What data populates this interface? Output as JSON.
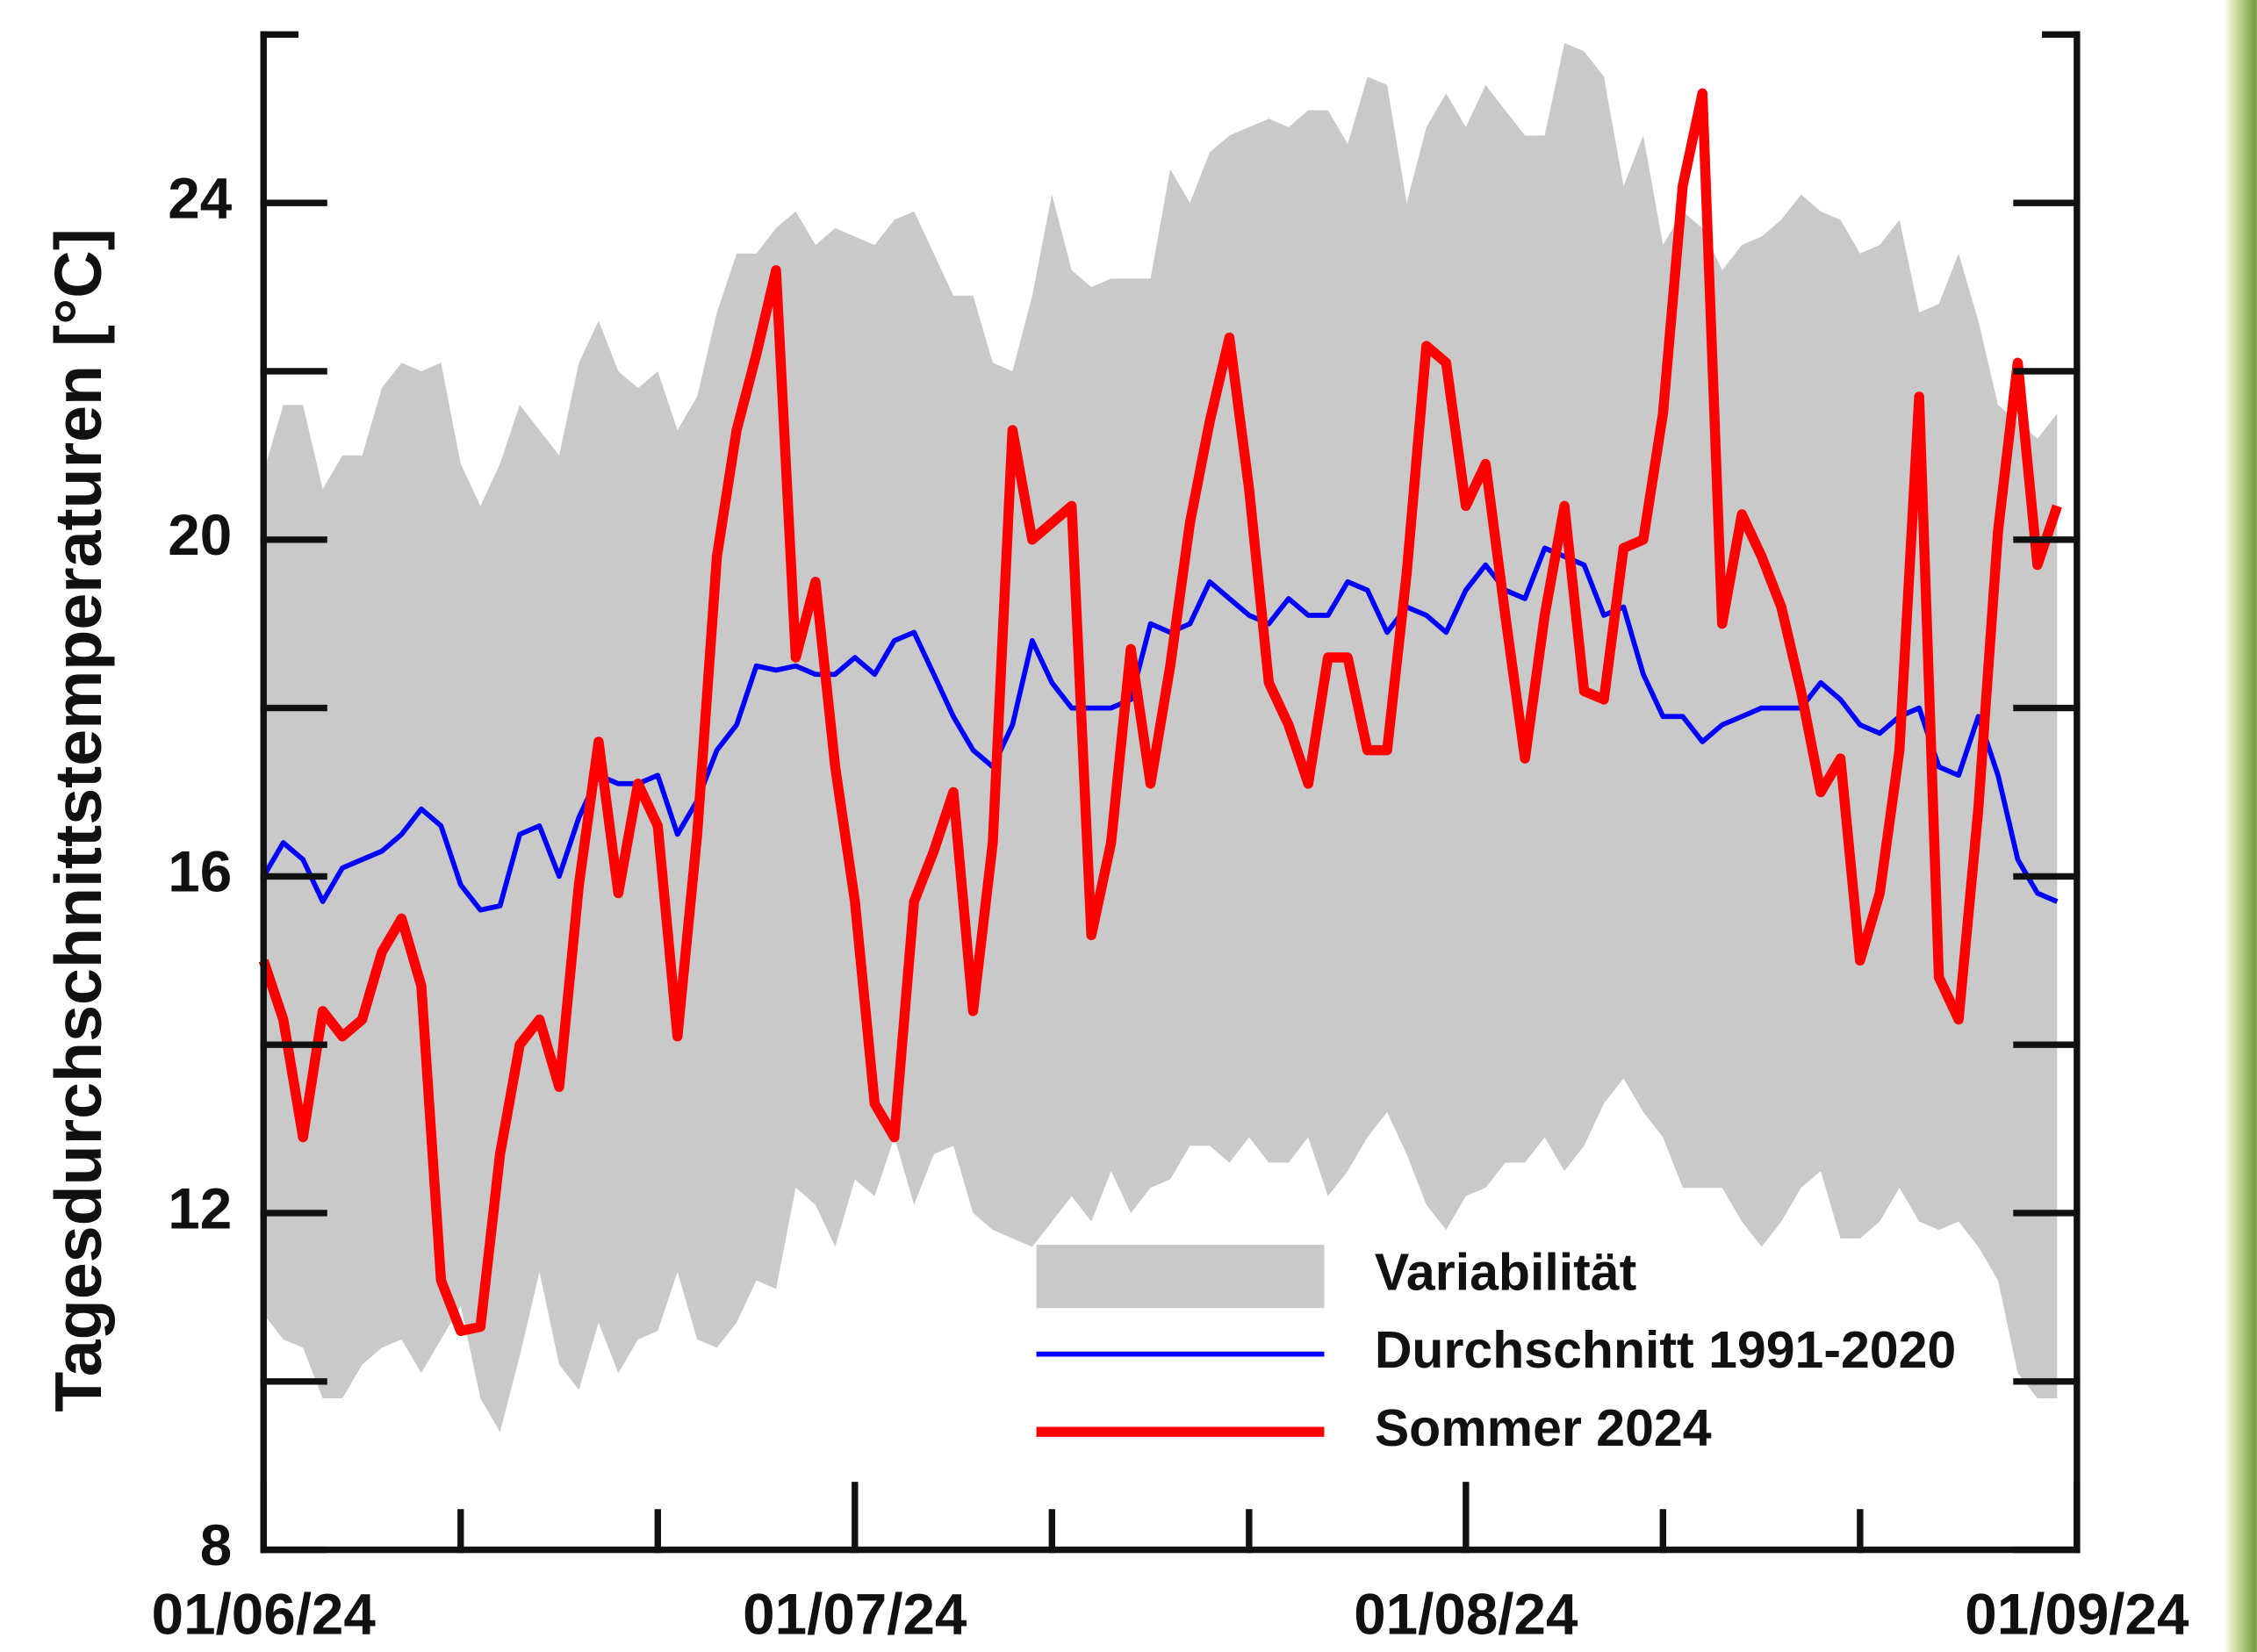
{
  "chart_data": {
    "type": "line",
    "y_label": "Tagesdurchschnittstemperaturen [°C]",
    "x": [
      "2024-06-01",
      "2024-06-02",
      "2024-06-03",
      "2024-06-04",
      "2024-06-05",
      "2024-06-06",
      "2024-06-07",
      "2024-06-08",
      "2024-06-09",
      "2024-06-10",
      "2024-06-11",
      "2024-06-12",
      "2024-06-13",
      "2024-06-14",
      "2024-06-15",
      "2024-06-16",
      "2024-06-17",
      "2024-06-18",
      "2024-06-19",
      "2024-06-20",
      "2024-06-21",
      "2024-06-22",
      "2024-06-23",
      "2024-06-24",
      "2024-06-25",
      "2024-06-26",
      "2024-06-27",
      "2024-06-28",
      "2024-06-29",
      "2024-06-30",
      "2024-07-01",
      "2024-07-02",
      "2024-07-03",
      "2024-07-04",
      "2024-07-05",
      "2024-07-06",
      "2024-07-07",
      "2024-07-08",
      "2024-07-09",
      "2024-07-10",
      "2024-07-11",
      "2024-07-12",
      "2024-07-13",
      "2024-07-14",
      "2024-07-15",
      "2024-07-16",
      "2024-07-17",
      "2024-07-18",
      "2024-07-19",
      "2024-07-20",
      "2024-07-21",
      "2024-07-22",
      "2024-07-23",
      "2024-07-24",
      "2024-07-25",
      "2024-07-26",
      "2024-07-27",
      "2024-07-28",
      "2024-07-29",
      "2024-07-30",
      "2024-07-31",
      "2024-08-01",
      "2024-08-02",
      "2024-08-03",
      "2024-08-04",
      "2024-08-05",
      "2024-08-06",
      "2024-08-07",
      "2024-08-08",
      "2024-08-09",
      "2024-08-10",
      "2024-08-11",
      "2024-08-12",
      "2024-08-13",
      "2024-08-14",
      "2024-08-15",
      "2024-08-16",
      "2024-08-17",
      "2024-08-18",
      "2024-08-19",
      "2024-08-20",
      "2024-08-21",
      "2024-08-22",
      "2024-08-23",
      "2024-08-24",
      "2024-08-25",
      "2024-08-26",
      "2024-08-27",
      "2024-08-28",
      "2024-08-29",
      "2024-08-30",
      "2024-08-31"
    ],
    "series": [
      {
        "name": "Variabilität",
        "kind": "band",
        "color": "#c9c9c9",
        "upper": [
          20.8,
          21.6,
          21.6,
          20.6,
          21.0,
          21.0,
          21.8,
          22.1,
          22.0,
          22.1,
          20.9,
          20.4,
          20.9,
          21.6,
          21.3,
          21.0,
          22.1,
          22.6,
          22.0,
          21.8,
          22.0,
          21.3,
          21.7,
          22.7,
          23.4,
          23.4,
          23.7,
          23.9,
          23.5,
          23.7,
          23.6,
          23.5,
          23.8,
          23.9,
          23.4,
          22.9,
          22.9,
          22.1,
          22.0,
          22.9,
          24.1,
          23.2,
          23.0,
          23.1,
          23.1,
          23.1,
          24.4,
          24.0,
          24.6,
          24.8,
          24.9,
          25.0,
          24.9,
          25.1,
          25.1,
          24.7,
          25.5,
          25.4,
          24.0,
          24.9,
          25.3,
          24.9,
          25.4,
          25.1,
          24.8,
          24.8,
          25.9,
          25.8,
          25.5,
          24.2,
          24.8,
          23.5,
          23.9,
          23.7,
          23.2,
          23.5,
          23.6,
          23.8,
          24.1,
          23.9,
          23.8,
          23.4,
          23.5,
          23.8,
          22.7,
          22.8,
          23.4,
          22.6,
          21.6,
          21.4,
          21.2,
          21.5
        ],
        "lower": [
          10.8,
          10.5,
          10.4,
          9.8,
          9.8,
          10.2,
          10.4,
          10.5,
          10.1,
          10.5,
          10.9,
          9.8,
          9.4,
          10.3,
          11.3,
          10.2,
          9.9,
          10.7,
          10.1,
          10.5,
          10.6,
          11.3,
          10.5,
          10.4,
          10.7,
          11.2,
          11.1,
          12.3,
          12.1,
          11.6,
          12.4,
          12.2,
          12.9,
          12.1,
          12.7,
          12.8,
          12.0,
          11.8,
          11.7,
          11.6,
          11.9,
          12.2,
          11.9,
          12.5,
          12.0,
          12.3,
          12.4,
          12.8,
          12.8,
          12.6,
          12.9,
          12.6,
          12.6,
          12.9,
          12.2,
          12.5,
          12.9,
          13.2,
          12.7,
          12.1,
          11.8,
          12.2,
          12.3,
          12.6,
          12.6,
          12.9,
          12.5,
          12.8,
          13.3,
          13.6,
          13.2,
          12.9,
          12.3,
          12.3,
          12.3,
          11.9,
          11.6,
          11.9,
          12.3,
          12.5,
          11.7,
          11.7,
          11.9,
          12.3,
          11.9,
          11.8,
          11.9,
          11.6,
          11.2,
          10.1,
          9.8,
          9.8
        ]
      },
      {
        "name": "Durchschnitt 1991-2020",
        "kind": "line",
        "color": "#0000ff",
        "width": 3.5,
        "values": [
          16.0,
          16.4,
          16.2,
          15.7,
          16.1,
          16.2,
          16.3,
          16.5,
          16.8,
          16.6,
          15.9,
          15.6,
          15.65,
          16.5,
          16.6,
          16.0,
          16.7,
          17.2,
          17.1,
          17.1,
          17.2,
          16.5,
          16.9,
          17.5,
          17.8,
          18.5,
          18.45,
          18.5,
          18.4,
          18.4,
          18.6,
          18.4,
          18.8,
          18.9,
          18.4,
          17.9,
          17.5,
          17.3,
          17.8,
          18.8,
          18.3,
          18.0,
          18.0,
          18.0,
          18.1,
          19.0,
          18.9,
          19.0,
          19.5,
          19.3,
          19.1,
          19.0,
          19.3,
          19.1,
          19.1,
          19.5,
          19.4,
          18.9,
          19.2,
          19.1,
          18.9,
          19.4,
          19.7,
          19.4,
          19.3,
          19.9,
          19.8,
          19.7,
          19.1,
          19.2,
          18.4,
          17.9,
          17.9,
          17.6,
          17.8,
          17.9,
          18.0,
          18.0,
          18.0,
          18.3,
          18.1,
          17.8,
          17.7,
          17.9,
          18.0,
          17.3,
          17.2,
          17.9,
          17.2,
          16.2,
          15.8,
          15.7
        ]
      },
      {
        "name": "Sommer 2024",
        "kind": "line",
        "color": "#ff0000",
        "width": 7,
        "values": [
          15.0,
          14.3,
          12.9,
          14.4,
          14.1,
          14.3,
          15.1,
          15.5,
          14.7,
          11.2,
          10.6,
          10.65,
          12.7,
          14.0,
          14.3,
          13.5,
          15.9,
          17.6,
          15.8,
          17.1,
          16.6,
          14.1,
          16.5,
          19.8,
          21.3,
          22.2,
          23.2,
          18.6,
          19.5,
          17.3,
          15.7,
          13.3,
          12.9,
          15.7,
          16.3,
          17.0,
          14.4,
          16.4,
          21.3,
          20.0,
          20.2,
          20.4,
          15.3,
          16.4,
          18.7,
          17.1,
          18.5,
          20.2,
          21.4,
          22.4,
          20.6,
          18.3,
          17.8,
          17.1,
          18.6,
          18.6,
          17.5,
          17.5,
          19.6,
          22.3,
          22.1,
          20.4,
          20.9,
          19.1,
          17.4,
          19.1,
          20.4,
          18.2,
          18.1,
          19.9,
          20.0,
          21.5,
          24.2,
          25.3,
          19.0,
          20.3,
          19.8,
          19.2,
          18.2,
          17.0,
          17.4,
          15.0,
          15.8,
          17.5,
          21.7,
          14.8,
          14.3,
          16.8,
          20.1,
          22.1,
          19.7,
          20.4
        ]
      }
    ],
    "xlim": [
      "2024-06-01",
      "2024-09-01"
    ],
    "xticks": [
      {
        "value": "2024-06-01",
        "label": "01/06/24"
      },
      {
        "value": "2024-07-01",
        "label": "01/07/24"
      },
      {
        "value": "2024-08-01",
        "label": "01/08/24"
      },
      {
        "value": "2024-09-01",
        "label": "01/09/24"
      }
    ],
    "xticks_minor": [
      "2024-06-11",
      "2024-06-21",
      "2024-07-11",
      "2024-07-21",
      "2024-08-11",
      "2024-08-21"
    ],
    "ylim": [
      8,
      26
    ],
    "yticks": [
      8,
      12,
      16,
      20,
      24
    ],
    "yticks_minor": [
      10,
      14,
      18,
      22
    ],
    "grid": false,
    "legend": "lower right"
  }
}
